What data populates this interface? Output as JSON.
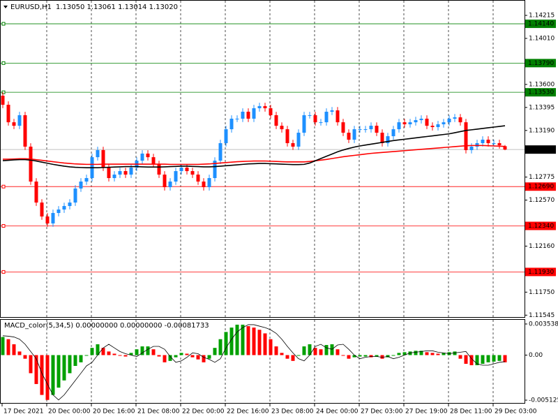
{
  "chart_data": [
    {
      "type": "candlestick",
      "symbol": "EURUSD,H1",
      "header_values": "1.13050 1.13061 1.13014 1.13020",
      "categories": [
        "17 Dec 2021",
        null,
        null,
        null,
        null,
        null,
        null,
        null,
        "20 Dec 00:00",
        null,
        null,
        null,
        null,
        null,
        null,
        null,
        "20 Dec 16:00",
        null,
        null,
        null,
        null,
        null,
        null,
        null,
        "21 Dec 08:00",
        null,
        null,
        null,
        null,
        null,
        null,
        null,
        "22 Dec 00:00",
        null,
        null,
        null,
        null,
        null,
        null,
        null,
        "22 Dec 16:00",
        null,
        null,
        null,
        null,
        null,
        null,
        null,
        "23 Dec 08:00",
        null,
        null,
        null,
        null,
        null,
        null,
        null,
        "24 Dec 00:00",
        null,
        null,
        null,
        null,
        null,
        null,
        null,
        "27 Dec 03:00",
        null,
        null,
        null,
        null,
        null,
        null,
        null,
        "27 Dec 19:00",
        null,
        null,
        null,
        null,
        null,
        null,
        null,
        "28 Dec 11:00",
        null,
        null,
        null,
        null,
        null,
        null,
        null,
        "29 Dec 03:00",
        null,
        null
      ],
      "open": [
        1.135,
        1.13419,
        1.13263,
        1.13232,
        1.13326,
        1.13046,
        1.12735,
        1.12548,
        1.12424,
        1.12362,
        1.12455,
        1.12486,
        1.12517,
        1.12548,
        1.12673,
        1.12735,
        1.12766,
        1.12952,
        1.13015,
        1.12859,
        1.12766,
        1.12797,
        1.12828,
        1.12797,
        1.12859,
        1.12921,
        1.12984,
        1.12952,
        1.1289,
        1.12797,
        1.12685,
        1.12735,
        1.12828,
        1.12859,
        1.12828,
        1.12797,
        1.12735,
        1.12685,
        1.12766,
        1.12921,
        1.13077,
        1.13201,
        1.13295,
        1.13295,
        1.13357,
        1.13295,
        1.13388,
        1.13407,
        1.13388,
        1.13326,
        1.13232,
        1.13201,
        1.13077,
        1.13046,
        1.1317,
        1.13326,
        1.13326,
        1.13263,
        1.13263,
        1.13357,
        1.13369,
        1.13263,
        1.1317,
        1.13108,
        1.13201,
        1.13201,
        1.13201,
        1.13232,
        1.1317,
        1.13077,
        1.13139,
        1.13201,
        1.13263,
        1.13245,
        1.13263,
        1.13282,
        1.13295,
        1.13232,
        1.1322,
        1.13245,
        1.13263,
        1.13295,
        1.13307,
        1.13263,
        1.13015,
        1.13046,
        1.13077,
        1.13108,
        1.13077,
        1.13077,
        1.1305
      ],
      "high": [
        1.1353,
        1.13449,
        1.13293,
        1.13356,
        1.13356,
        1.13076,
        1.12765,
        1.12578,
        1.12454,
        1.12485,
        1.12516,
        1.12547,
        1.12578,
        1.12703,
        1.12765,
        1.12796,
        1.12982,
        1.13045,
        1.13045,
        1.12889,
        1.12827,
        1.12858,
        1.12858,
        1.12889,
        1.12951,
        1.13014,
        1.13014,
        1.12982,
        1.1292,
        1.12827,
        1.12765,
        1.12858,
        1.12889,
        1.12889,
        1.12858,
        1.12827,
        1.12765,
        1.12796,
        1.12951,
        1.13107,
        1.13231,
        1.13325,
        1.13325,
        1.13387,
        1.13387,
        1.13418,
        1.13437,
        1.13437,
        1.13418,
        1.13356,
        1.13262,
        1.13231,
        1.13107,
        1.132,
        1.13356,
        1.13356,
        1.13356,
        1.13293,
        1.13387,
        1.13399,
        1.13399,
        1.13293,
        1.132,
        1.13231,
        1.13231,
        1.13231,
        1.13262,
        1.13262,
        1.132,
        1.13169,
        1.13231,
        1.13293,
        1.13293,
        1.13293,
        1.13312,
        1.13325,
        1.13325,
        1.13262,
        1.13275,
        1.13293,
        1.13325,
        1.13337,
        1.13337,
        1.13293,
        1.13076,
        1.13107,
        1.13138,
        1.13138,
        1.13107,
        1.13107,
        1.13061
      ],
      "low": [
        1.13389,
        1.13233,
        1.13202,
        1.13202,
        1.13016,
        1.12705,
        1.12518,
        1.12394,
        1.12332,
        1.12332,
        1.12425,
        1.12456,
        1.12487,
        1.12518,
        1.12643,
        1.12705,
        1.12736,
        1.12922,
        1.12829,
        1.12736,
        1.12736,
        1.12767,
        1.12767,
        1.12767,
        1.12829,
        1.12891,
        1.12922,
        1.1286,
        1.12767,
        1.12655,
        1.12655,
        1.12705,
        1.12798,
        1.12798,
        1.12767,
        1.12705,
        1.12655,
        1.12655,
        1.12736,
        1.12891,
        1.13047,
        1.13171,
        1.13265,
        1.13265,
        1.13265,
        1.13265,
        1.13358,
        1.13358,
        1.13296,
        1.13202,
        1.13171,
        1.13047,
        1.13016,
        1.13016,
        1.1314,
        1.13296,
        1.13233,
        1.13233,
        1.13233,
        1.13327,
        1.13233,
        1.1314,
        1.13078,
        1.13078,
        1.13171,
        1.13171,
        1.13171,
        1.1314,
        1.13047,
        1.13047,
        1.13109,
        1.13171,
        1.13215,
        1.13215,
        1.13233,
        1.13252,
        1.13202,
        1.1319,
        1.1319,
        1.13215,
        1.13233,
        1.13265,
        1.13233,
        1.12985,
        1.12985,
        1.13016,
        1.13047,
        1.13047,
        1.13047,
        1.13028,
        1.13014
      ],
      "close": [
        1.13419,
        1.13263,
        1.13232,
        1.13326,
        1.13046,
        1.12735,
        1.12548,
        1.12424,
        1.12362,
        1.12455,
        1.12486,
        1.12517,
        1.12548,
        1.12673,
        1.12735,
        1.12766,
        1.12952,
        1.13015,
        1.12859,
        1.12766,
        1.12797,
        1.12828,
        1.12797,
        1.12859,
        1.12921,
        1.12984,
        1.12952,
        1.1289,
        1.12797,
        1.12685,
        1.12735,
        1.12828,
        1.12859,
        1.12828,
        1.12797,
        1.12735,
        1.12685,
        1.12766,
        1.12921,
        1.13077,
        1.13201,
        1.13295,
        1.13295,
        1.13357,
        1.13295,
        1.13388,
        1.13407,
        1.13388,
        1.13326,
        1.13232,
        1.13201,
        1.13077,
        1.13046,
        1.1317,
        1.13326,
        1.13326,
        1.13263,
        1.13263,
        1.13357,
        1.13369,
        1.13263,
        1.1317,
        1.13108,
        1.13201,
        1.13201,
        1.13201,
        1.13232,
        1.1317,
        1.13077,
        1.13139,
        1.13201,
        1.13263,
        1.13245,
        1.13263,
        1.13282,
        1.13295,
        1.13232,
        1.1322,
        1.13245,
        1.13263,
        1.13295,
        1.13307,
        1.13263,
        1.13015,
        1.13046,
        1.13077,
        1.13108,
        1.13077,
        1.13077,
        1.13058,
        1.1302
      ],
      "up_color": "#1e90ff",
      "down_color": "#ff0000",
      "lines": [
        {
          "color": "#ff0000",
          "values": [
            1.12934,
            1.12934,
            1.12936,
            1.12938,
            1.12938,
            1.12936,
            1.1293,
            1.12924,
            1.12918,
            1.12912,
            1.12906,
            1.129,
            1.12896,
            1.12892,
            1.1289,
            1.12888,
            1.12888,
            1.12888,
            1.1289,
            1.1289,
            1.1289,
            1.1289,
            1.1289,
            1.1289,
            1.1289,
            1.1289,
            1.1289,
            1.1289,
            1.1289,
            1.1289,
            1.12888,
            1.12888,
            1.12888,
            1.12888,
            1.12888,
            1.12888,
            1.1289,
            1.12892,
            1.12896,
            1.129,
            1.12904,
            1.12908,
            1.12912,
            1.12914,
            1.12916,
            1.12918,
            1.12918,
            1.12918,
            1.12916,
            1.12914,
            1.12912,
            1.1291,
            1.1291,
            1.1291,
            1.1291,
            1.12914,
            1.1292,
            1.12926,
            1.12932,
            1.1294,
            1.12948,
            1.12956,
            1.12962,
            1.12968,
            1.12974,
            1.1298,
            1.12986,
            1.1299,
            1.12994,
            1.12998,
            1.13002,
            1.13006,
            1.1301,
            1.13014,
            1.13018,
            1.13022,
            1.13026,
            1.1303,
            1.13034,
            1.13038,
            1.13042,
            1.13046,
            1.1305,
            1.13054,
            1.13056,
            1.13056,
            1.13056,
            1.13054,
            1.13052,
            1.1305,
            1.13048
          ]
        },
        {
          "color": "#000000",
          "values": [
            1.12921,
            1.12924,
            1.12928,
            1.1293,
            1.1293,
            1.12926,
            1.12918,
            1.12908,
            1.12898,
            1.12888,
            1.1288,
            1.12872,
            1.12866,
            1.12862,
            1.1286,
            1.12858,
            1.12858,
            1.12858,
            1.1286,
            1.12862,
            1.12864,
            1.12866,
            1.12868,
            1.12868,
            1.12868,
            1.12866,
            1.12864,
            1.12864,
            1.12864,
            1.12866,
            1.12868,
            1.1287,
            1.12872,
            1.12872,
            1.1287,
            1.12868,
            1.12866,
            1.12866,
            1.12868,
            1.12872,
            1.12876,
            1.1288,
            1.12884,
            1.12888,
            1.12892,
            1.12894,
            1.12896,
            1.12896,
            1.12894,
            1.12892,
            1.1289,
            1.12888,
            1.12886,
            1.12886,
            1.12888,
            1.129,
            1.1292,
            1.1294,
            1.1296,
            1.1298,
            1.13,
            1.13016,
            1.1303,
            1.13042,
            1.13052,
            1.1306,
            1.13068,
            1.13076,
            1.13084,
            1.13092,
            1.131,
            1.13106,
            1.13112,
            1.13118,
            1.13124,
            1.1313,
            1.13136,
            1.13142,
            1.13148,
            1.13154,
            1.1316,
            1.1317,
            1.1318,
            1.1319,
            1.13196,
            1.13202,
            1.13208,
            1.13214,
            1.1322,
            1.13226,
            1.13232
          ]
        }
      ],
      "levels": [
        {
          "value": 1.1414,
          "label": "1.14140",
          "color": "#008000"
        },
        {
          "value": 1.1379,
          "label": "1.13790",
          "color": "#008000"
        },
        {
          "value": 1.1353,
          "label": "1.13530",
          "color": "#008000"
        },
        {
          "value": 1.1269,
          "label": "1.12690",
          "color": "#ff0000"
        },
        {
          "value": 1.1234,
          "label": "1.12340",
          "color": "#ff0000"
        },
        {
          "value": 1.1193,
          "label": "1.11930",
          "color": "#ff0000"
        }
      ],
      "last_price": {
        "value": 1.1302,
        "label": "1.13020"
      },
      "ylim": [
        1.11522,
        1.14352
      ],
      "yticks": [
        1.14215,
        {
          "value": 1.1401,
          "label": "1.14010"
        },
        {
          "value": 1.136,
          "label": "1.13600"
        },
        1.13395,
        {
          "value": 1.1319,
          "label": "1.13190"
        },
        1.12775,
        {
          "value": 1.1257,
          "label": "1.12570"
        },
        {
          "value": 1.1216,
          "label": "1.12160"
        },
        {
          "value": 1.1175,
          "label": "1.11750"
        },
        1.11545
      ],
      "grid": true
    },
    {
      "type": "bar",
      "title": "MACD_color(5,34,5) 0.00000000 0.00000000 -0.00081733",
      "values": [
        0.00206,
        0.00181,
        0.00123,
        0.00041,
        -0.00041,
        -0.00206,
        -0.00329,
        -0.00453,
        -0.0051,
        -0.00453,
        -0.0037,
        -0.00288,
        -0.00206,
        -0.00123,
        -0.00082,
        0,
        0.00082,
        0.00123,
        0.00082,
        0.00041,
        0.00016,
        0,
        -0.00016,
        0.00025,
        0.00066,
        0.00099,
        0.00099,
        0.00066,
        -0.00016,
        -0.00082,
        -0.00066,
        -0.00025,
        0.00025,
        0.00016,
        -0.00025,
        -0.00049,
        -0.00082,
        -0.00041,
        0.00082,
        0.00181,
        0.00263,
        0.00313,
        0.00346,
        0.00346,
        0.00329,
        0.00313,
        0.00288,
        0.00247,
        0.00181,
        0.00099,
        0.00025,
        -0.00041,
        -0.00066,
        0,
        0.00099,
        0.00123,
        0.00082,
        0.00066,
        0.00115,
        0.00123,
        0.00066,
        0,
        -0.00041,
        -0.00025,
        -0.00016,
        -0.00016,
        -0.00025,
        -0.00016,
        -0.00041,
        -0.00025,
        0,
        0.00025,
        0.00033,
        0.00041,
        0.00049,
        0.00049,
        0.00033,
        0.00025,
        0.00016,
        0.00025,
        0.00033,
        0.00041,
        -0.00041,
        -0.00099,
        -0.00115,
        -0.00115,
        -0.00099,
        -0.00082,
        -0.00074,
        -0.00066,
        -0.00082
      ],
      "up_color": "#00a000",
      "down_color": "#ff0000",
      "signal": {
        "color": "#000000",
        "values": [
          0.0022,
          0.00215,
          0.00206,
          0.00181,
          0.00123,
          0.00041,
          -0.00041,
          -0.00206,
          -0.00329,
          -0.00453,
          -0.0051,
          -0.00453,
          -0.0037,
          -0.00288,
          -0.00206,
          -0.00123,
          -0.00082,
          0,
          0.00082,
          0.00123,
          0.00082,
          0.00041,
          0.00016,
          0,
          -0.00016,
          0.00025,
          0.00066,
          0.00099,
          0.00099,
          0.00066,
          -0.00016,
          -0.00082,
          -0.00066,
          -0.00025,
          0.00025,
          0.00016,
          -0.00025,
          -0.00049,
          -0.00082,
          -0.00041,
          0.00082,
          0.00181,
          0.00263,
          0.00313,
          0.00346,
          0.00346,
          0.00329,
          0.00313,
          0.00288,
          0.00247,
          0.00181,
          0.00099,
          0.00025,
          -0.00041,
          -0.00066,
          0,
          0.00099,
          0.00123,
          0.00082,
          0.00066,
          0.00115,
          0.00123,
          0.00066,
          0,
          -0.00041,
          -0.00025,
          -0.00016,
          -0.00016,
          -0.00025,
          -0.00016,
          -0.00041,
          -0.00025,
          0,
          0.00025,
          0.00033,
          0.00041,
          0.00049,
          0.00049,
          0.00033,
          0.00025,
          0.00016,
          0.00025,
          0.00033,
          0.00041,
          -0.00041,
          -0.00099,
          -0.00115,
          -0.00115,
          -0.00099,
          -0.00082,
          -0.00074
        ]
      },
      "ylim": [
        -0.00552,
        0.00409
      ],
      "yticks": [
        {
          "value": 0.003538,
          "label": "0.003538"
        },
        {
          "value": 0,
          "label": "0.00"
        },
        {
          "value": -0.005125,
          "label": "-0.005125"
        }
      ]
    }
  ]
}
